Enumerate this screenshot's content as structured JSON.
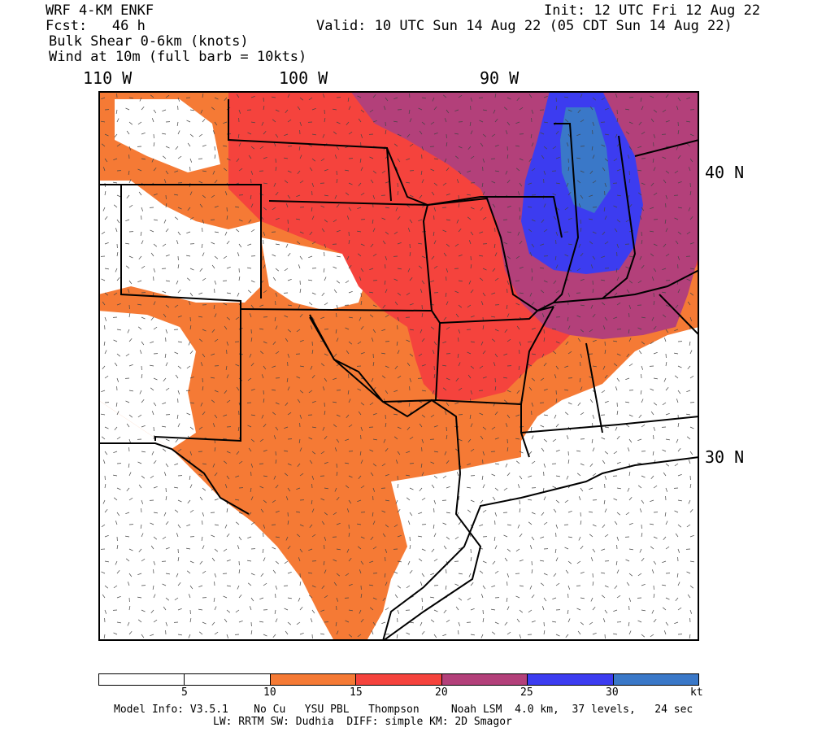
{
  "header": {
    "model": "WRF 4-KM ENKF",
    "fcst": "Fcst:   46 h",
    "init": "Init: 12 UTC Fri 12 Aug 22",
    "valid": "Valid: 10 UTC Sun 14 Aug 22 (05 CDT Sun 14 Aug 22)",
    "field": "Bulk Shear 0-6km (knots)",
    "wind": "Wind at 10m (full barb = 10kts)"
  },
  "axes": {
    "lon_labels": [
      "110 W",
      "100 W",
      "90 W"
    ],
    "lat_labels": [
      "40 N",
      "30 N"
    ]
  },
  "colorbar": {
    "colors": [
      "#ffffff",
      "#ffffff",
      "#f57a35",
      "#f5433d",
      "#b3407a",
      "#3c3cf0",
      "#3a78c8"
    ],
    "labels": [
      "5",
      "10",
      "15",
      "20",
      "25",
      "30",
      "kt"
    ]
  },
  "footer": {
    "line1": "Model Info: V3.5.1    No Cu   YSU PBL   Thompson     Noah LSM  4.0 km,  37 levels,   24 sec",
    "line2": "LW: RRTM SW: Dudhia  DIFF: simple KM: 2D Smagor"
  },
  "map_colors": {
    "orange": "#f57a35",
    "red": "#f5433d",
    "purple": "#b3407a",
    "blue": "#3c3cf0",
    "steel": "#3a78c8"
  }
}
